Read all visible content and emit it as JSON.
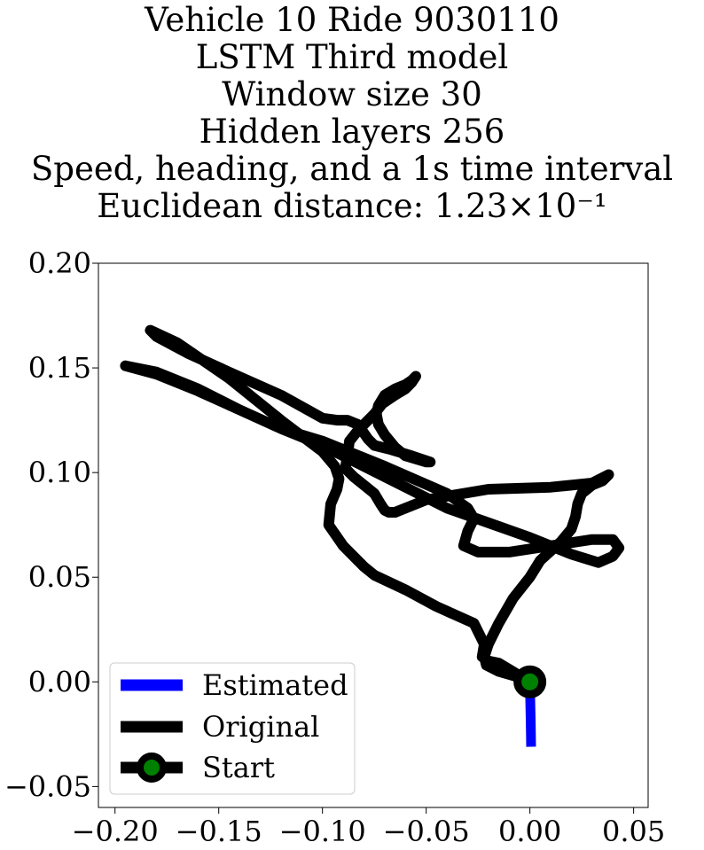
{
  "chart_data": {
    "type": "line",
    "title_lines": [
      "Vehicle 10 Ride 9030110",
      "LSTM Third model",
      "Window size 30",
      "Hidden layers 256",
      "Speed, heading, and a 1s time interval",
      "Euclidean distance: 1.23×10⁻¹"
    ],
    "xlabel": "",
    "ylabel": "",
    "xlim": [
      -0.208,
      0.057
    ],
    "ylim": [
      -0.06,
      0.2
    ],
    "x_ticks": [
      -0.2,
      -0.15,
      -0.1,
      -0.05,
      0.0,
      0.05
    ],
    "x_tick_labels": [
      "−0.20",
      "−0.15",
      "−0.10",
      "−0.05",
      "0.00",
      "0.05"
    ],
    "y_ticks": [
      -0.05,
      0.0,
      0.05,
      0.1,
      0.15,
      0.2
    ],
    "y_tick_labels": [
      "−0.05",
      "0.00",
      "0.05",
      "0.10",
      "0.15",
      "0.20"
    ],
    "grid": false,
    "legend_position": "lower-left",
    "series": [
      {
        "name": "Estimated",
        "color": "#0000ff",
        "x": [
          0.0,
          0.0002,
          0.0004,
          0.0006
        ],
        "y": [
          0.0,
          -0.01,
          -0.02,
          -0.031
        ]
      },
      {
        "name": "Original",
        "color": "#000000",
        "x": [
          0.0,
          -0.01,
          -0.015,
          -0.02,
          -0.023,
          -0.022,
          -0.027,
          -0.045,
          -0.06,
          -0.075,
          -0.08,
          -0.09,
          -0.097,
          -0.096,
          -0.093,
          -0.092,
          -0.094,
          -0.1,
          -0.12,
          -0.145,
          -0.17,
          -0.183,
          -0.18,
          -0.165,
          -0.145,
          -0.12,
          -0.1,
          -0.093,
          -0.088,
          -0.083,
          -0.078,
          -0.075,
          -0.067,
          -0.057,
          -0.048,
          -0.05,
          -0.06,
          -0.065,
          -0.07,
          -0.073,
          -0.074,
          -0.073,
          -0.07,
          -0.065,
          -0.06,
          -0.057,
          -0.055,
          -0.055,
          -0.057,
          -0.06,
          -0.065,
          -0.071,
          -0.075,
          -0.079,
          -0.083,
          -0.087,
          -0.088,
          -0.089,
          -0.085,
          -0.08,
          -0.075,
          -0.072,
          -0.07,
          -0.068,
          -0.065,
          -0.05,
          -0.02,
          0.01,
          0.03,
          0.038,
          0.035,
          0.03,
          0.025,
          0.023,
          0.022,
          0.02,
          0.015,
          0.005,
          0.0,
          -0.008,
          -0.015,
          -0.02,
          -0.022,
          -0.021,
          -0.015,
          -0.008,
          0.0
        ],
        "y": [
          0.0,
          0.006,
          0.009,
          0.01,
          0.012,
          0.018,
          0.028,
          0.036,
          0.044,
          0.051,
          0.055,
          0.065,
          0.075,
          0.085,
          0.092,
          0.097,
          0.103,
          0.11,
          0.125,
          0.145,
          0.162,
          0.168,
          0.165,
          0.157,
          0.148,
          0.137,
          0.126,
          0.125,
          0.125,
          0.123,
          0.116,
          0.113,
          0.111,
          0.108,
          0.105,
          0.105,
          0.108,
          0.112,
          0.118,
          0.123,
          0.128,
          0.132,
          0.137,
          0.14,
          0.142,
          0.144,
          0.146,
          0.146,
          0.143,
          0.14,
          0.137,
          0.133,
          0.128,
          0.124,
          0.12,
          0.115,
          0.108,
          0.102,
          0.098,
          0.094,
          0.09,
          0.085,
          0.082,
          0.081,
          0.081,
          0.087,
          0.092,
          0.093,
          0.095,
          0.099,
          0.096,
          0.094,
          0.09,
          0.085,
          0.079,
          0.073,
          0.067,
          0.058,
          0.05,
          0.04,
          0.028,
          0.018,
          0.012,
          0.008,
          0.005,
          0.003,
          0.0
        ]
      },
      {
        "name": "Start",
        "color": "#000000",
        "marker_color": "#008000",
        "x": [
          0.0
        ],
        "y": [
          0.0
        ]
      }
    ],
    "extra_loop": {
      "x": [
        -0.195,
        -0.18,
        -0.16,
        -0.14,
        -0.12,
        -0.1,
        -0.07,
        -0.04,
        -0.03,
        -0.027,
        -0.03,
        -0.032,
        -0.025,
        -0.01,
        0.01,
        0.03,
        0.04,
        0.043,
        0.04,
        0.033,
        0.02,
        0.0,
        -0.02,
        -0.04,
        -0.06,
        -0.08,
        -0.1,
        -0.12,
        -0.14,
        -0.16,
        -0.18,
        -0.195
      ],
      "y": [
        0.151,
        0.148,
        0.14,
        0.13,
        0.121,
        0.115,
        0.103,
        0.09,
        0.083,
        0.078,
        0.072,
        0.065,
        0.062,
        0.062,
        0.065,
        0.068,
        0.068,
        0.064,
        0.06,
        0.057,
        0.061,
        0.069,
        0.076,
        0.083,
        0.093,
        0.103,
        0.113,
        0.121,
        0.13,
        0.139,
        0.147,
        0.151
      ]
    }
  }
}
